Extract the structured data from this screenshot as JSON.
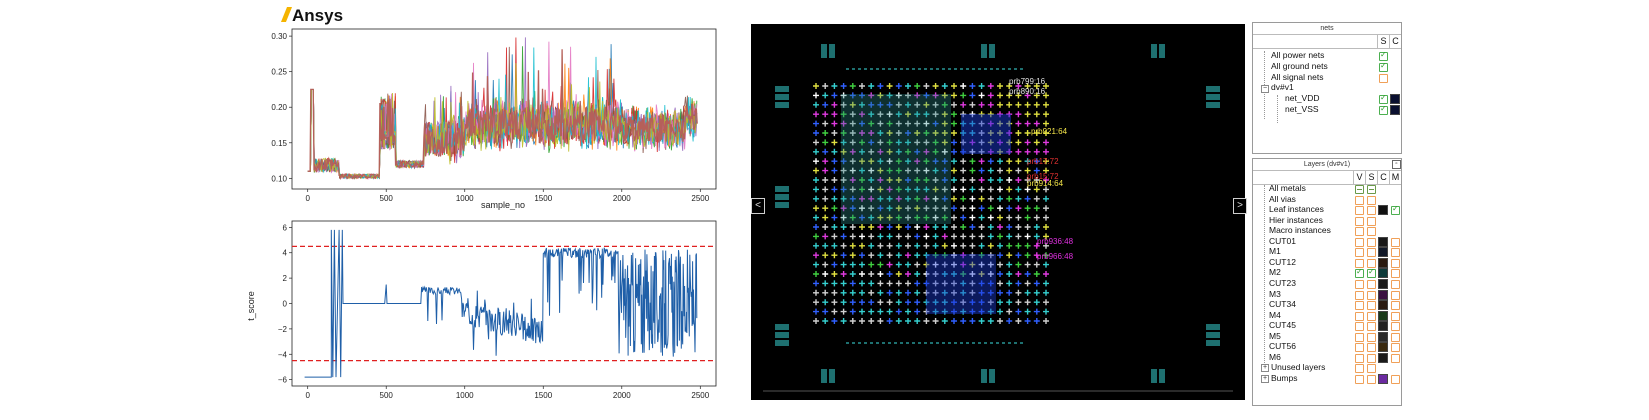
{
  "brand": {
    "logo_text": "Ansys",
    "accent": "#f5b400"
  },
  "chart_top": {
    "type": "line",
    "xlabel": "sample_no",
    "x_ticks": [
      "0",
      "500",
      "1000",
      "1500",
      "2000",
      "2500"
    ],
    "y_ticks": [
      "0.10",
      "0.15",
      "0.20",
      "0.25",
      "0.30"
    ],
    "xlim": [
      -100,
      2600
    ],
    "ylim": [
      0.085,
      0.31
    ],
    "colors": [
      "#1f77b4",
      "#ff7f0e",
      "#2ca02c",
      "#d62728",
      "#9467bd",
      "#8c564b",
      "#e377c2",
      "#17becf",
      "#bcbd22"
    ]
  },
  "chart_bottom": {
    "type": "line",
    "ylabel": "t_score",
    "x_ticks": [
      "0",
      "500",
      "1000",
      "1500",
      "2000",
      "2500"
    ],
    "y_ticks": [
      "6",
      "4",
      "2",
      "0",
      "−2",
      "−4",
      "−6"
    ],
    "xlim": [
      -100,
      2600
    ],
    "ylim": [
      -6.5,
      6.5
    ],
    "threshold_lines": [
      4.5,
      -4.5
    ],
    "series_color": "#1f5fa8",
    "threshold_color": "#e02020"
  },
  "layout_view": {
    "nav_left": "<",
    "nav_right": ">",
    "labels": [
      {
        "text": "prb921:64",
        "color": "#f5e64a"
      },
      {
        "text": "prb17:72",
        "color": "#e03030"
      },
      {
        "text": "prb15:72",
        "color": "#e03030"
      },
      {
        "text": "prb914:64",
        "color": "#f5e64a"
      },
      {
        "text": "prb936:48",
        "color": "#e030e0"
      },
      {
        "text": "prb966:48",
        "color": "#e030e0"
      },
      {
        "text": "prb799:16",
        "color": "#e0e0e0"
      },
      {
        "text": "prb890:16",
        "color": "#e0e0e0"
      }
    ]
  },
  "nets_panel": {
    "title": "nets",
    "col_s": "S",
    "col_c": "C",
    "items": [
      {
        "label": "All power nets",
        "s": true
      },
      {
        "label": "All ground nets",
        "s": true
      },
      {
        "label": "All signal nets",
        "s": false
      },
      {
        "label": "dv#v1",
        "s": null
      },
      {
        "label": "net_VDD",
        "s": true
      },
      {
        "label": "net_VSS",
        "s": true
      }
    ]
  },
  "layers_panel": {
    "title": "Layers (dv#v1)",
    "col_v": "V",
    "col_s": "S",
    "col_c": "C",
    "col_m": "M",
    "items": [
      {
        "label": "All metals"
      },
      {
        "label": "All vias"
      },
      {
        "label": "Leaf instances"
      },
      {
        "label": "Hier instances"
      },
      {
        "label": "Macro instances"
      },
      {
        "label": "CUT01"
      },
      {
        "label": "M1"
      },
      {
        "label": "CUT12"
      },
      {
        "label": "M2"
      },
      {
        "label": "CUT23"
      },
      {
        "label": "M3"
      },
      {
        "label": "CUT34"
      },
      {
        "label": "M4"
      },
      {
        "label": "CUT45"
      },
      {
        "label": "M5"
      },
      {
        "label": "CUT56"
      },
      {
        "label": "M6"
      },
      {
        "label": "Unused layers"
      },
      {
        "label": "Bumps"
      }
    ]
  }
}
